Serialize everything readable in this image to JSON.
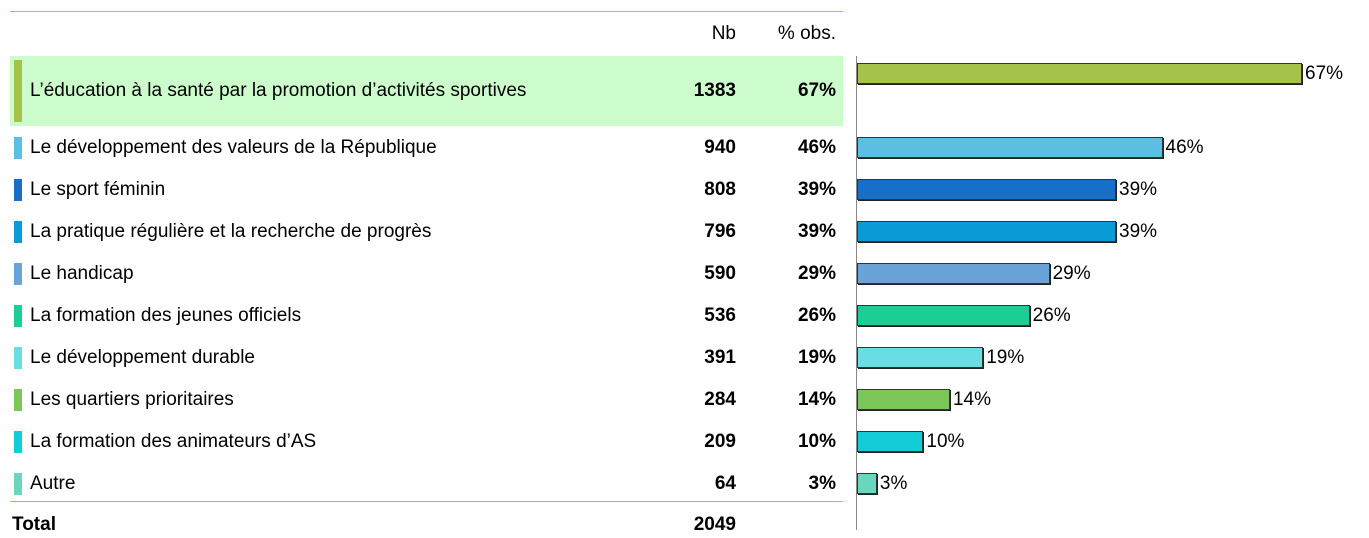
{
  "chart_data": {
    "type": "bar",
    "columns": [
      "Nb",
      "% obs."
    ],
    "categories": [
      "L’éducation à la santé par la promotion d’activités sportives",
      "Le développement des valeurs de la République",
      "Le sport féminin",
      "La pratique régulière et la recherche de progrès",
      "Le handicap",
      "La formation des jeunes officiels",
      "Le développement durable",
      "Les quartiers prioritaires",
      "La formation des animateurs d’AS",
      "Autre"
    ],
    "counts": [
      1383,
      940,
      808,
      796,
      590,
      536,
      391,
      284,
      209,
      64
    ],
    "values": [
      67,
      46,
      39,
      39,
      29,
      26,
      19,
      14,
      10,
      3
    ],
    "value_labels": [
      "67%",
      "46%",
      "39%",
      "39%",
      "29%",
      "26%",
      "19%",
      "14%",
      "10%",
      "3%"
    ],
    "colors": [
      "#a4c34a",
      "#5bbfe3",
      "#1670c9",
      "#0b9bd7",
      "#6aa3d8",
      "#1cce96",
      "#68dde3",
      "#7cc75a",
      "#12ccd8",
      "#6ad6bd"
    ],
    "total_label": "Total",
    "total": 2049
  }
}
